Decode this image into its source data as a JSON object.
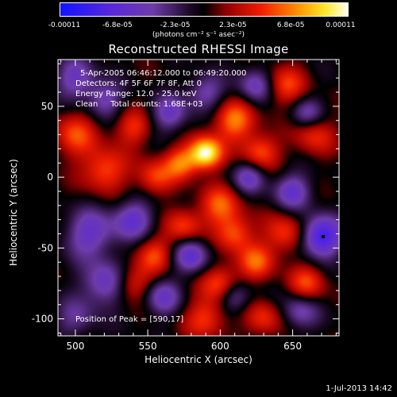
{
  "chart_data": {
    "type": "heatmap",
    "title": "Reconstructed RHESSI Image",
    "xlabel": "Heliocentric X (arcsec)",
    "ylabel": "Heliocentric Y (arcsec)",
    "xlim": [
      488,
      682
    ],
    "ylim": [
      -112,
      83
    ],
    "x_ticks": [
      500,
      550,
      600,
      650
    ],
    "y_ticks": [
      -100,
      -50,
      0,
      50
    ],
    "colorbar": {
      "ticks": [
        "-0.00011",
        "-6.8e-05",
        "-2.3e-05",
        "2.3e-05",
        "6.8e-05",
        "0.00011"
      ],
      "unit": "(photons cm⁻² s⁻¹ asec⁻²)",
      "range": [
        -0.00011,
        0.00011
      ]
    },
    "annotations": [
      "5-Apr-2005 06:46:12.000 to 06:49:20.000",
      "Detectors: 4F 5F 6F 7F 8F, Att 0",
      "Energy Range: 12.0 - 25.0 keV",
      "Clean     Total counts: 1.68E+03"
    ],
    "peak_label": "Position of Peak = [590,17]",
    "peak": [
      590,
      17
    ],
    "marker": [
      671,
      -42
    ],
    "blobs": [
      {
        "x": 590,
        "y": 17,
        "v": 1.0,
        "s": 8
      },
      {
        "x": 610,
        "y": 40,
        "v": 0.6,
        "s": 10
      },
      {
        "x": 573,
        "y": 10,
        "v": 0.55,
        "s": 8
      },
      {
        "x": 628,
        "y": 18,
        "v": 0.5,
        "s": 9
      },
      {
        "x": 555,
        "y": 0,
        "v": 0.45,
        "s": 9
      },
      {
        "x": 520,
        "y": 5,
        "v": 0.5,
        "s": 11
      },
      {
        "x": 500,
        "y": 30,
        "v": 0.45,
        "s": 11
      },
      {
        "x": 540,
        "y": 35,
        "v": 0.4,
        "s": 9
      },
      {
        "x": 600,
        "y": -20,
        "v": 0.5,
        "s": 10
      },
      {
        "x": 575,
        "y": -35,
        "v": 0.45,
        "s": 9
      },
      {
        "x": 610,
        "y": -40,
        "v": 0.5,
        "s": 9
      },
      {
        "x": 645,
        "y": -40,
        "v": 0.45,
        "s": 10
      },
      {
        "x": 625,
        "y": -60,
        "v": 0.5,
        "s": 9
      },
      {
        "x": 600,
        "y": -75,
        "v": 0.5,
        "s": 9
      },
      {
        "x": 555,
        "y": -55,
        "v": 0.45,
        "s": 9
      },
      {
        "x": 540,
        "y": -75,
        "v": 0.4,
        "s": 9
      },
      {
        "x": 590,
        "y": -100,
        "v": 0.45,
        "s": 10
      },
      {
        "x": 630,
        "y": -100,
        "v": 0.4,
        "s": 9
      },
      {
        "x": 660,
        "y": -75,
        "v": 0.45,
        "s": 9
      },
      {
        "x": 645,
        "y": 65,
        "v": 0.45,
        "s": 10
      },
      {
        "x": 665,
        "y": 30,
        "v": 0.4,
        "s": 10
      },
      {
        "x": 510,
        "y": -40,
        "v": -0.5,
        "s": 12
      },
      {
        "x": 540,
        "y": -30,
        "v": -0.5,
        "s": 10
      },
      {
        "x": 520,
        "y": -75,
        "v": -0.5,
        "s": 11
      },
      {
        "x": 560,
        "y": -85,
        "v": -0.45,
        "s": 9
      },
      {
        "x": 580,
        "y": -55,
        "v": -0.55,
        "s": 9
      },
      {
        "x": 650,
        "y": -10,
        "v": -0.5,
        "s": 9
      },
      {
        "x": 670,
        "y": -42,
        "v": -0.8,
        "s": 10
      },
      {
        "x": 620,
        "y": 0,
        "v": -0.45,
        "s": 8
      },
      {
        "x": 500,
        "y": 70,
        "v": -0.45,
        "s": 10
      },
      {
        "x": 520,
        "y": 55,
        "v": -0.4,
        "s": 9
      },
      {
        "x": 565,
        "y": 45,
        "v": -0.45,
        "s": 9
      },
      {
        "x": 590,
        "y": 60,
        "v": -0.4,
        "s": 9
      },
      {
        "x": 625,
        "y": 65,
        "v": -0.45,
        "s": 9
      },
      {
        "x": 660,
        "y": 45,
        "v": -0.4,
        "s": 8
      },
      {
        "x": 610,
        "y": -85,
        "v": -0.4,
        "s": 8
      },
      {
        "x": 655,
        "y": -95,
        "v": -0.4,
        "s": 9
      },
      {
        "x": 500,
        "y": -100,
        "v": -0.3,
        "s": 10
      }
    ]
  },
  "footer": "1-Jul-2013 14:42"
}
